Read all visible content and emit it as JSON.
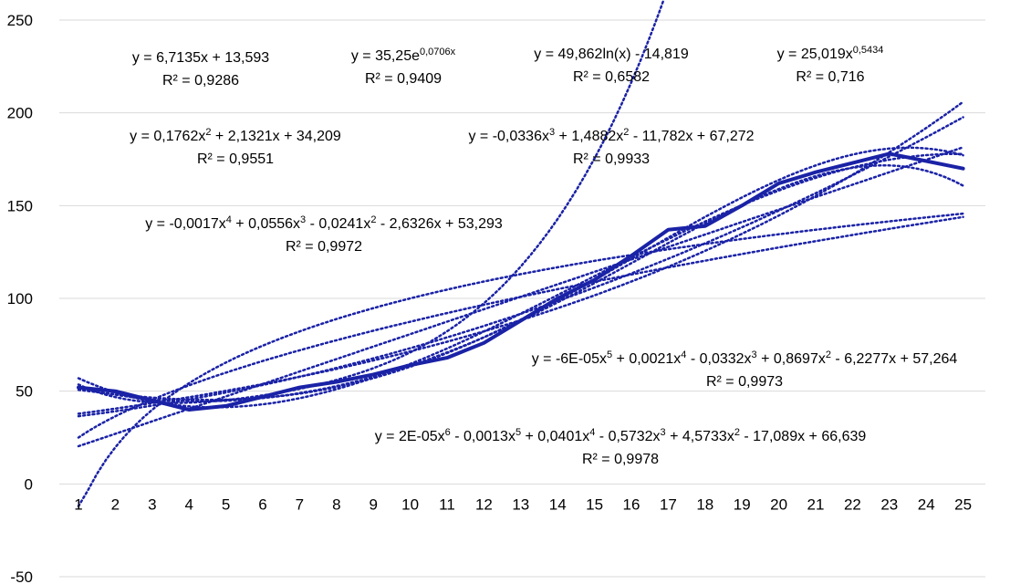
{
  "chart_data": {
    "type": "line",
    "title": "",
    "xlabel": "",
    "ylabel": "",
    "x": [
      1,
      2,
      3,
      4,
      5,
      6,
      7,
      8,
      9,
      10,
      11,
      12,
      13,
      14,
      15,
      16,
      17,
      18,
      19,
      20,
      21,
      22,
      23,
      24,
      25
    ],
    "ylim": [
      -50,
      250
    ],
    "yticks": [
      -50,
      0,
      50,
      100,
      150,
      200,
      250
    ],
    "grid": true,
    "colors": {
      "series": "#1a22a6",
      "grid": "#d9d9d9"
    },
    "series": [
      {
        "values": [
          52,
          50,
          45,
          40,
          42,
          47,
          52,
          55,
          59,
          64,
          68,
          76,
          88,
          100,
          110,
          123,
          137,
          139,
          150,
          162,
          168,
          173,
          178,
          174,
          170
        ]
      }
    ],
    "trendlines": [
      {
        "kind": "linear",
        "a": 6.7135,
        "b": 13.593
      },
      {
        "kind": "exponential",
        "a": 35.25,
        "k": 0.0706
      },
      {
        "kind": "logarithmic",
        "a": 49.862,
        "b": -14.819
      },
      {
        "kind": "power",
        "a": 25.019,
        "p": 0.5434
      },
      {
        "kind": "polynomial",
        "coef": [
          34.209,
          2.1321,
          0.1762
        ]
      },
      {
        "kind": "polynomial",
        "coef": [
          67.272,
          -11.782,
          1.4882,
          -0.0336
        ]
      },
      {
        "kind": "polynomial",
        "coef": [
          53.293,
          -2.6326,
          -0.0241,
          0.0556,
          -0.0017
        ]
      },
      {
        "kind": "polynomial",
        "coef": [
          57.264,
          -6.2277,
          0.8697,
          -0.0332,
          0.0021,
          -6e-05
        ]
      },
      {
        "kind": "polynomial",
        "coef": [
          66.639,
          -17.089,
          4.5733,
          -0.5732,
          0.0401,
          -0.0013,
          2e-05
        ]
      }
    ],
    "annotations": [
      {
        "equation": "y = 6,7135x + 13,593",
        "r2": "R² = 0,9286"
      },
      {
        "equation": "y = 35,25e^0,0706x",
        "r2": "R² = 0,9409"
      },
      {
        "equation": "y = 49,862ln(x) - 14,819",
        "r2": "R² = 0,6582"
      },
      {
        "equation": "y = 25,019x^0,5434",
        "r2": "R² = 0,716"
      },
      {
        "equation": "y = 0,1762x² + 2,1321x + 34,209",
        "r2": "R² = 0,9551"
      },
      {
        "equation": "y = -0,0336x³ + 1,4882x² - 11,782x + 67,272",
        "r2": "R² = 0,9933"
      },
      {
        "equation": "y = -0,0017x⁴ + 0,0556x³ - 0,0241x² - 2,6326x + 53,293",
        "r2": "R² = 0,9972"
      },
      {
        "equation": "y = -6E-05x⁵ + 0,0021x⁴ - 0,0332x³ + 0,8697x² - 6,2277x + 57,264",
        "r2": "R² = 0,9973"
      },
      {
        "equation": "y = 2E-05x⁶ - 0,0013x⁵ + 0,0401x⁴ - 0,5732x³ + 4,5733x² - 17,089x + 66,639",
        "r2": "R² = 0,9978"
      }
    ]
  }
}
